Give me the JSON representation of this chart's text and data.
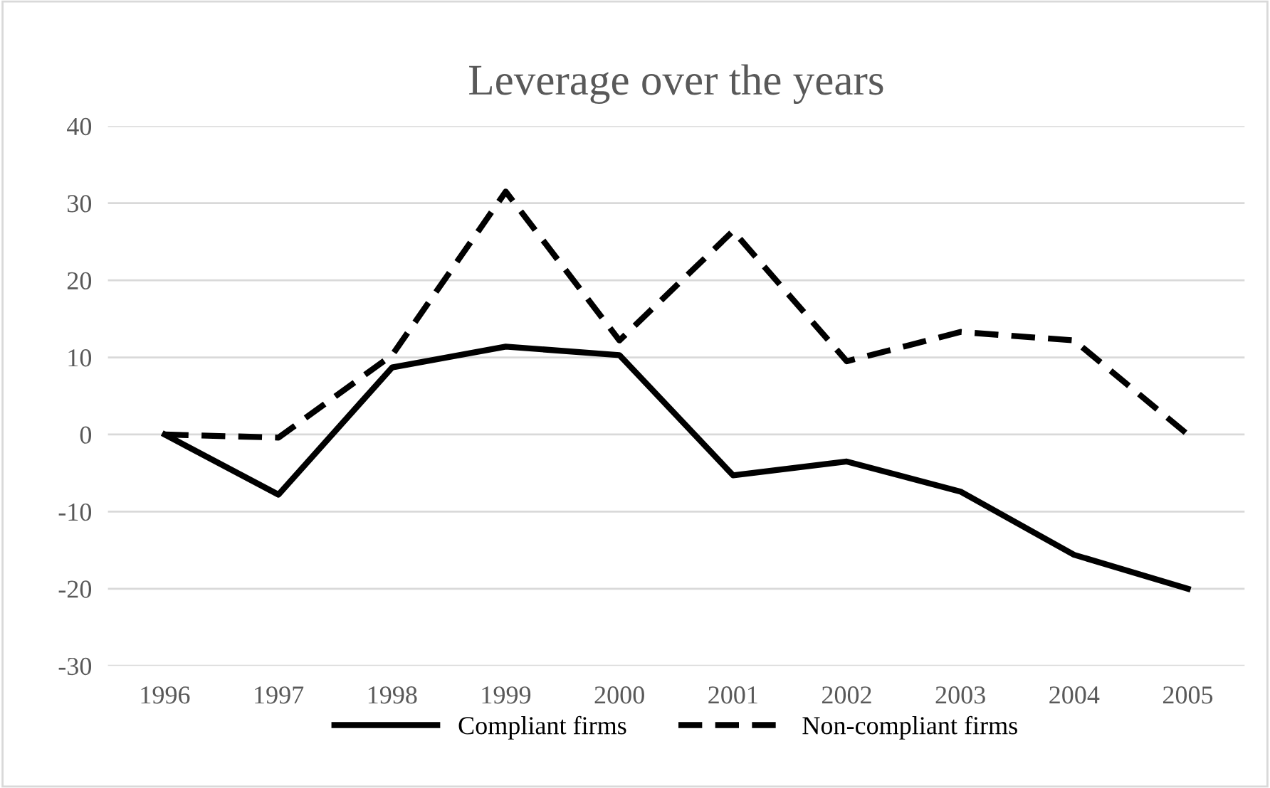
{
  "chart_data": {
    "type": "line",
    "title": "Leverage over the years",
    "categories": [
      "1996",
      "1997",
      "1998",
      "1999",
      "2000",
      "2001",
      "2002",
      "2003",
      "2004",
      "2005"
    ],
    "series": [
      {
        "name": "Compliant firms",
        "color": "#000000",
        "line_style": "solid",
        "values": [
          0,
          -7.8,
          8.7,
          11.4,
          10.3,
          -5.3,
          -3.5,
          -7.4,
          -15.6,
          -20
        ]
      },
      {
        "name": "Non-compliant firms",
        "color": "#000000",
        "line_style": "dashed",
        "values": [
          0,
          -0.4,
          10.3,
          31.5,
          12.2,
          26.4,
          9.5,
          13.3,
          12.2,
          0
        ]
      }
    ],
    "ylim": [
      -30,
      40
    ],
    "yticks": [
      -30,
      -20,
      -10,
      0,
      10,
      20,
      30,
      40
    ],
    "grid": "y",
    "legend": "bottom",
    "marker": "none"
  }
}
